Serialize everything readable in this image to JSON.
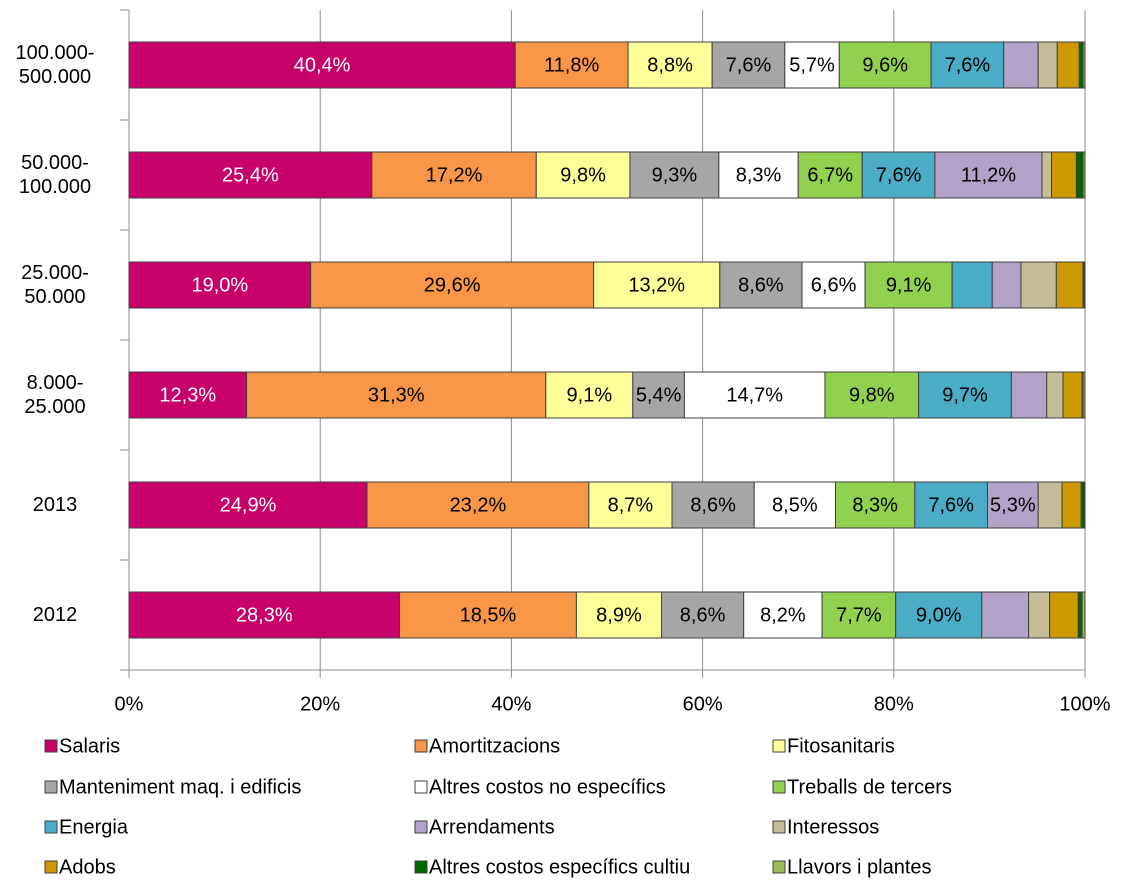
{
  "chart_data": {
    "type": "stacked-bar-horizontal",
    "categories": [
      "100.000-\n500.000",
      "50.000-\n100.000",
      "25.000-\n50.000",
      "8.000-\n25.000",
      "2013",
      "2012"
    ],
    "xlim": [
      0,
      100
    ],
    "xticks": [
      {
        "value": 0,
        "label": "0%"
      },
      {
        "value": 20,
        "label": "20%"
      },
      {
        "value": 40,
        "label": "40%"
      },
      {
        "value": 60,
        "label": "60%"
      },
      {
        "value": 80,
        "label": "80%"
      },
      {
        "value": 100,
        "label": "100%"
      }
    ],
    "grid": true,
    "legend": "bottom",
    "series": [
      {
        "name": "Salaris",
        "color": "#c8006a",
        "values": [
          40.4,
          25.4,
          19.0,
          12.3,
          24.9,
          28.3
        ],
        "value_labels": [
          "40,4%",
          "25,4%",
          "19,0%",
          "12,3%",
          "24,9%",
          "28,3%"
        ]
      },
      {
        "name": "Amortitzacions",
        "color": "#f79646",
        "values": [
          11.8,
          17.2,
          29.6,
          31.3,
          23.2,
          18.5
        ],
        "value_labels": [
          "11,8%",
          "17,2%",
          "29,6%",
          "31,3%",
          "23,2%",
          "18,5%"
        ]
      },
      {
        "name": "Fitosanitaris",
        "color": "#ffff99",
        "values": [
          8.8,
          9.8,
          13.2,
          9.1,
          8.7,
          8.9
        ],
        "value_labels": [
          "8,8%",
          "9,8%",
          "13,2%",
          "9,1%",
          "8,7%",
          "8,9%"
        ]
      },
      {
        "name": "Manteniment maq. i edificis",
        "color": "#a6a6a6",
        "values": [
          7.6,
          9.3,
          8.6,
          5.4,
          8.6,
          8.6
        ],
        "value_labels": [
          "7,6%",
          "9,3%",
          "8,6%",
          "5,4%",
          "8,6%",
          "8,6%"
        ]
      },
      {
        "name": "Altres costos no específics",
        "color": "#ffffff",
        "values": [
          5.7,
          8.3,
          6.6,
          14.7,
          8.5,
          8.2
        ],
        "value_labels": [
          "5,7%",
          "8,3%",
          "6,6%",
          "14,7%",
          "8,5%",
          "8,2%"
        ]
      },
      {
        "name": "Treballs de tercers",
        "color": "#92d050",
        "values": [
          9.6,
          6.7,
          9.1,
          9.8,
          8.3,
          7.7
        ],
        "value_labels": [
          "9,6%",
          "6,7%",
          "9,1%",
          "9,8%",
          "8,3%",
          "7,7%"
        ]
      },
      {
        "name": "Energia",
        "color": "#4bacc6",
        "values": [
          7.6,
          7.6,
          4.2,
          9.7,
          7.6,
          9.0
        ],
        "value_labels": [
          "7,6%",
          "7,6%",
          null,
          "9,7%",
          "7,6%",
          "9,0%"
        ]
      },
      {
        "name": "Arrendaments",
        "color": "#b3a2c7",
        "values": [
          3.6,
          11.2,
          3.0,
          3.7,
          5.3,
          4.9
        ],
        "value_labels": [
          null,
          "11,2%",
          null,
          null,
          "5,3%",
          null
        ]
      },
      {
        "name": "Interessos",
        "color": "#c4bd97",
        "values": [
          2.0,
          1.0,
          3.7,
          1.7,
          2.5,
          2.2
        ]
      },
      {
        "name": "Adobs",
        "color": "#cc9900",
        "values": [
          2.3,
          2.6,
          2.8,
          2.0,
          2.0,
          3.0
        ]
      },
      {
        "name": "Altres costos específics cultiu",
        "color": "#006600",
        "values": [
          0.4,
          0.7,
          0.1,
          0.1,
          0.3,
          0.4
        ]
      },
      {
        "name": "Llavors i plantes",
        "color": "#9bbb59",
        "values": [
          0.2,
          0.2,
          0.1,
          0.2,
          0.1,
          0.3
        ]
      }
    ]
  }
}
